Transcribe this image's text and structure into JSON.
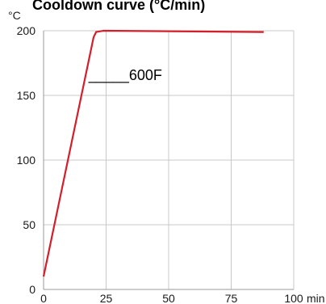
{
  "chart_data": {
    "type": "line",
    "title": "Cooldown curve (°C/min)",
    "y_unit": "°C",
    "x_unit": "min",
    "xlim": [
      0,
      100
    ],
    "ylim": [
      0,
      200
    ],
    "x_ticks": [
      0,
      25,
      50,
      75,
      100
    ],
    "y_ticks": [
      0,
      50,
      100,
      150,
      200
    ],
    "x_tick_labels": [
      "0",
      "25",
      "50",
      "75",
      "100"
    ],
    "y_tick_labels": [
      "0",
      "50",
      "100",
      "150",
      "200"
    ],
    "grid": true,
    "series": [
      {
        "name": "600F",
        "color": "#d21f2b",
        "x": [
          0,
          20,
          21,
          24,
          88
        ],
        "y": [
          10,
          195,
          199,
          200,
          199
        ]
      }
    ],
    "annotation": {
      "text": "_____600F",
      "x": 18,
      "y": 162
    }
  }
}
